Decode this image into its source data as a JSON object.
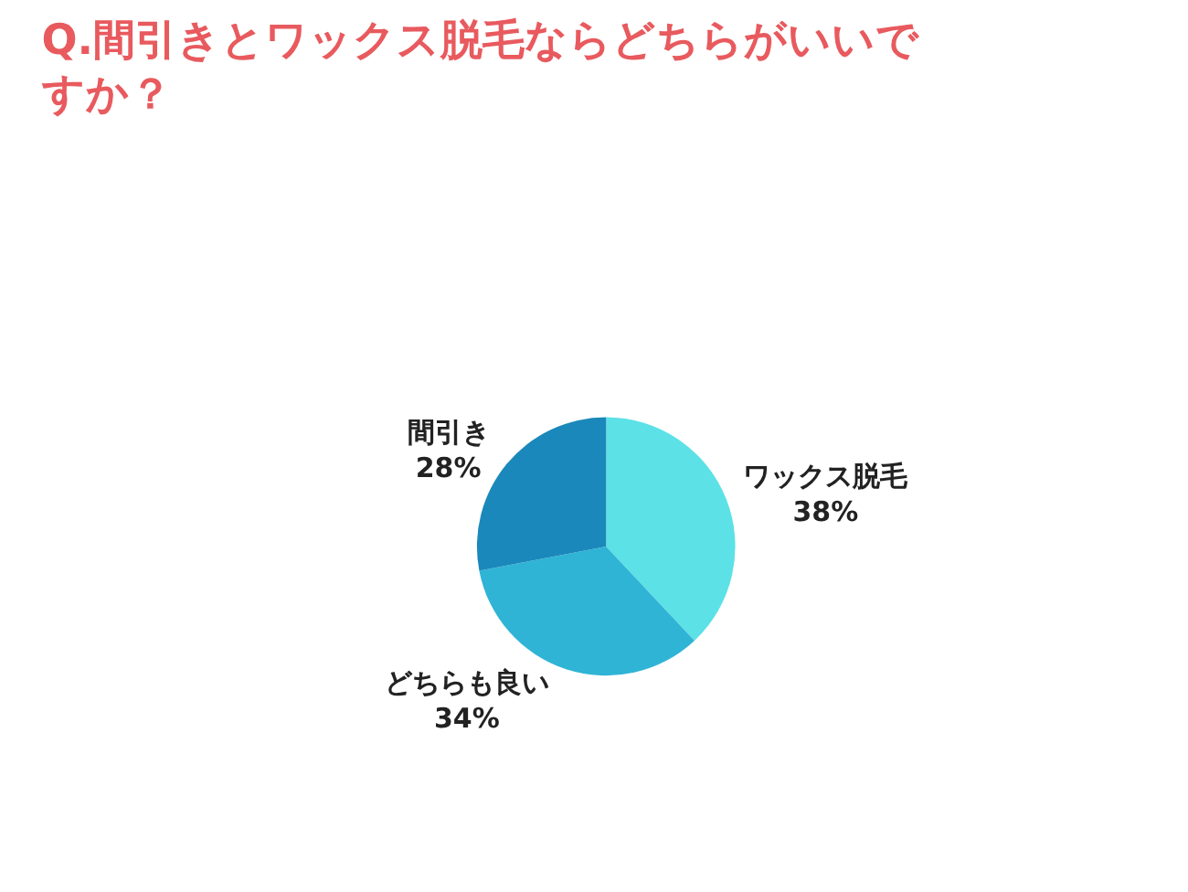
{
  "chart_data": {
    "type": "pie",
    "title": "Q.間引きとワックス脱毛ならどちらがいいですか？",
    "categories": [
      "ワックス脱毛",
      "どちらも良い",
      "間引き"
    ],
    "values": [
      38,
      34,
      28
    ],
    "colors": [
      "#5ce1e6",
      "#2fb4d6",
      "#1a88ba"
    ],
    "value_labels": [
      "38%",
      "34%",
      "28%"
    ],
    "legend": false
  }
}
